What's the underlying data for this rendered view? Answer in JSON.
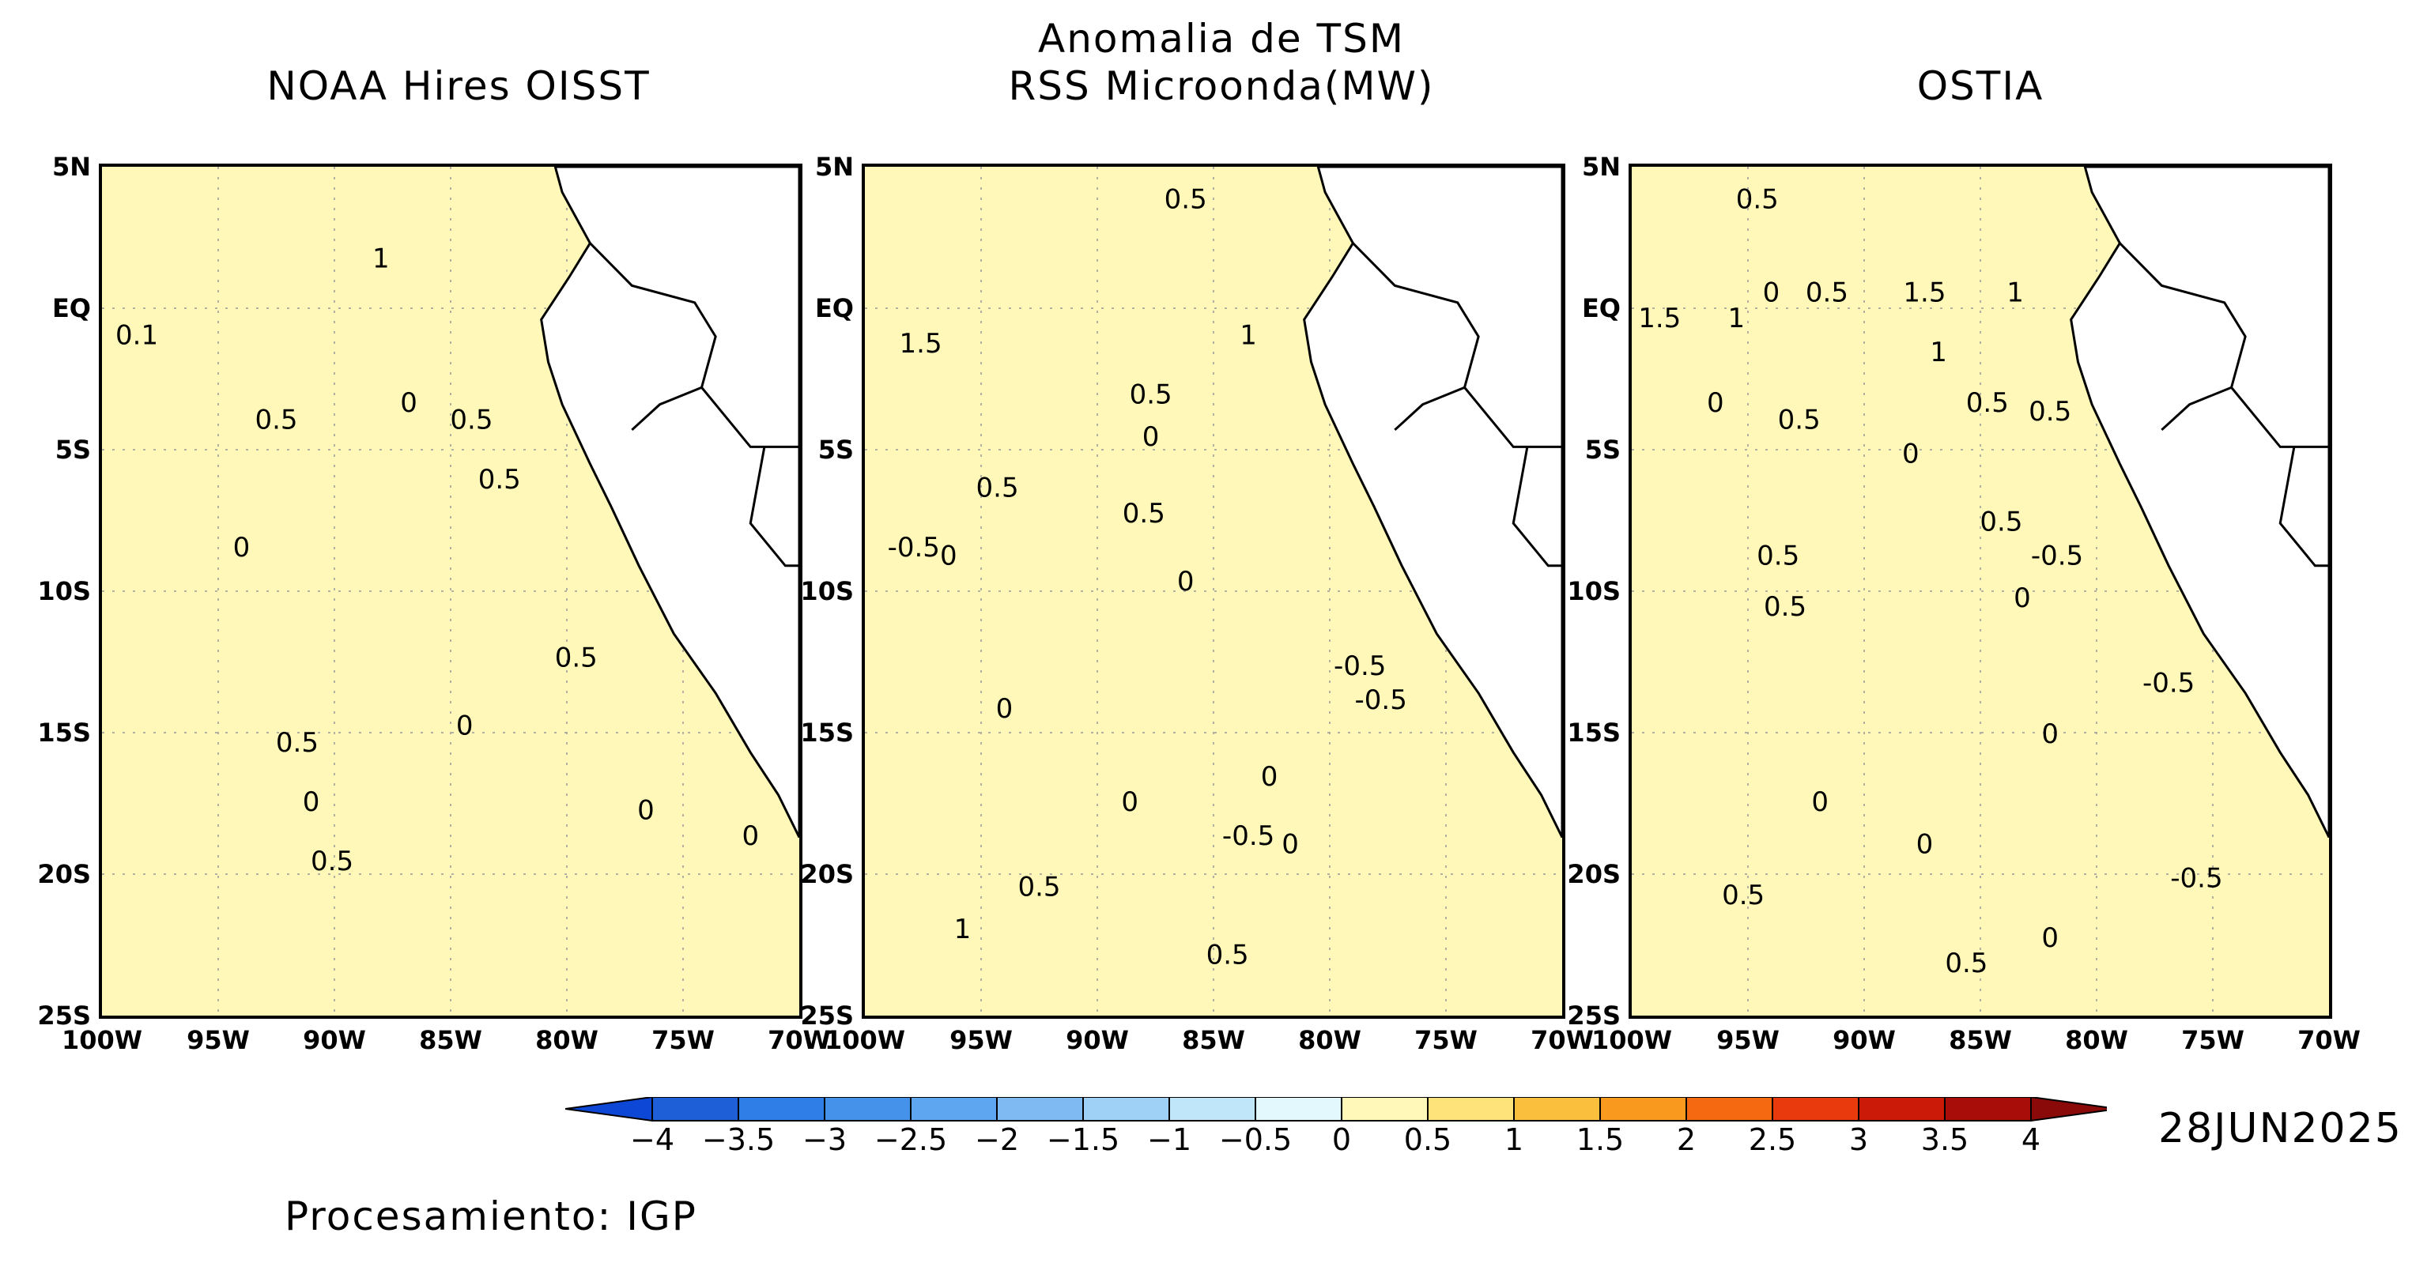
{
  "header": {
    "title_line1": "Anomalia de TSM",
    "title_line2": "RSS Microonda(MW)",
    "left_title": "NOAA Hires OISST",
    "right_title": "OSTIA"
  },
  "map": {
    "lat_labels": [
      "5N",
      "EQ",
      "5S",
      "10S",
      "15S",
      "20S",
      "25S"
    ],
    "lon_labels": [
      "100W",
      "95W",
      "90W",
      "85W",
      "80W",
      "75W",
      "70W"
    ],
    "projection": "lat-lon",
    "extent": {
      "lon": [
        -100,
        -70
      ],
      "lat": [
        -25,
        5
      ]
    },
    "grid": "dotted gray"
  },
  "panels": [
    {
      "name": "NOAA Hires OISST",
      "contour_labels": [
        "1",
        "0.1",
        "0.5",
        "0",
        "0.5",
        "0.5",
        "0",
        "0.5",
        "0",
        "0.5",
        "0",
        "0",
        "0",
        "0.5"
      ]
    },
    {
      "name": "RSS Microonda(MW)",
      "contour_labels": [
        "0.5",
        "1.5",
        "0.5",
        "0",
        "1",
        "0.5",
        "0.5",
        "-0.5",
        "0",
        "0",
        "-0.5",
        "-0.5",
        "0",
        "0",
        "-0.5",
        "0",
        "0",
        "0.5",
        "1",
        "0.5"
      ]
    },
    {
      "name": "OSTIA",
      "contour_labels": [
        "0.5",
        "0",
        "0.5",
        "1.5",
        "1",
        "1.5",
        "1",
        "1",
        "0",
        "0.5",
        "0.5",
        "0.5",
        "0",
        "0.5",
        "0.5",
        "-0.5",
        "0",
        "0.5",
        "-0.5",
        "0",
        "0",
        "0",
        "-0.5",
        "0.5",
        "0",
        "0.5"
      ]
    }
  ],
  "colorbar": {
    "tick_labels": [
      "−4",
      "−3.5",
      "−3",
      "−2.5",
      "−2",
      "−1.5",
      "−1",
      "−0.5",
      "0",
      "0.5",
      "1",
      "1.5",
      "2",
      "2.5",
      "3",
      "3.5",
      "4"
    ],
    "colors": [
      "#1e5fd8",
      "#2f7de6",
      "#4592eb",
      "#5ea6ef",
      "#7fbaf3",
      "#9fd0f6",
      "#bfe7f9",
      "#e2f8fc",
      "#fff8b8",
      "#fde37a",
      "#fbbf3e",
      "#f99a1f",
      "#f56a10",
      "#e83a0c",
      "#cc1a08",
      "#a80d0a"
    ],
    "extend_low_color": "#0d47d6",
    "extend_high_color": "#8a0a0a"
  },
  "date": "28JUN2025",
  "credit": "Procesamiento: IGP"
}
